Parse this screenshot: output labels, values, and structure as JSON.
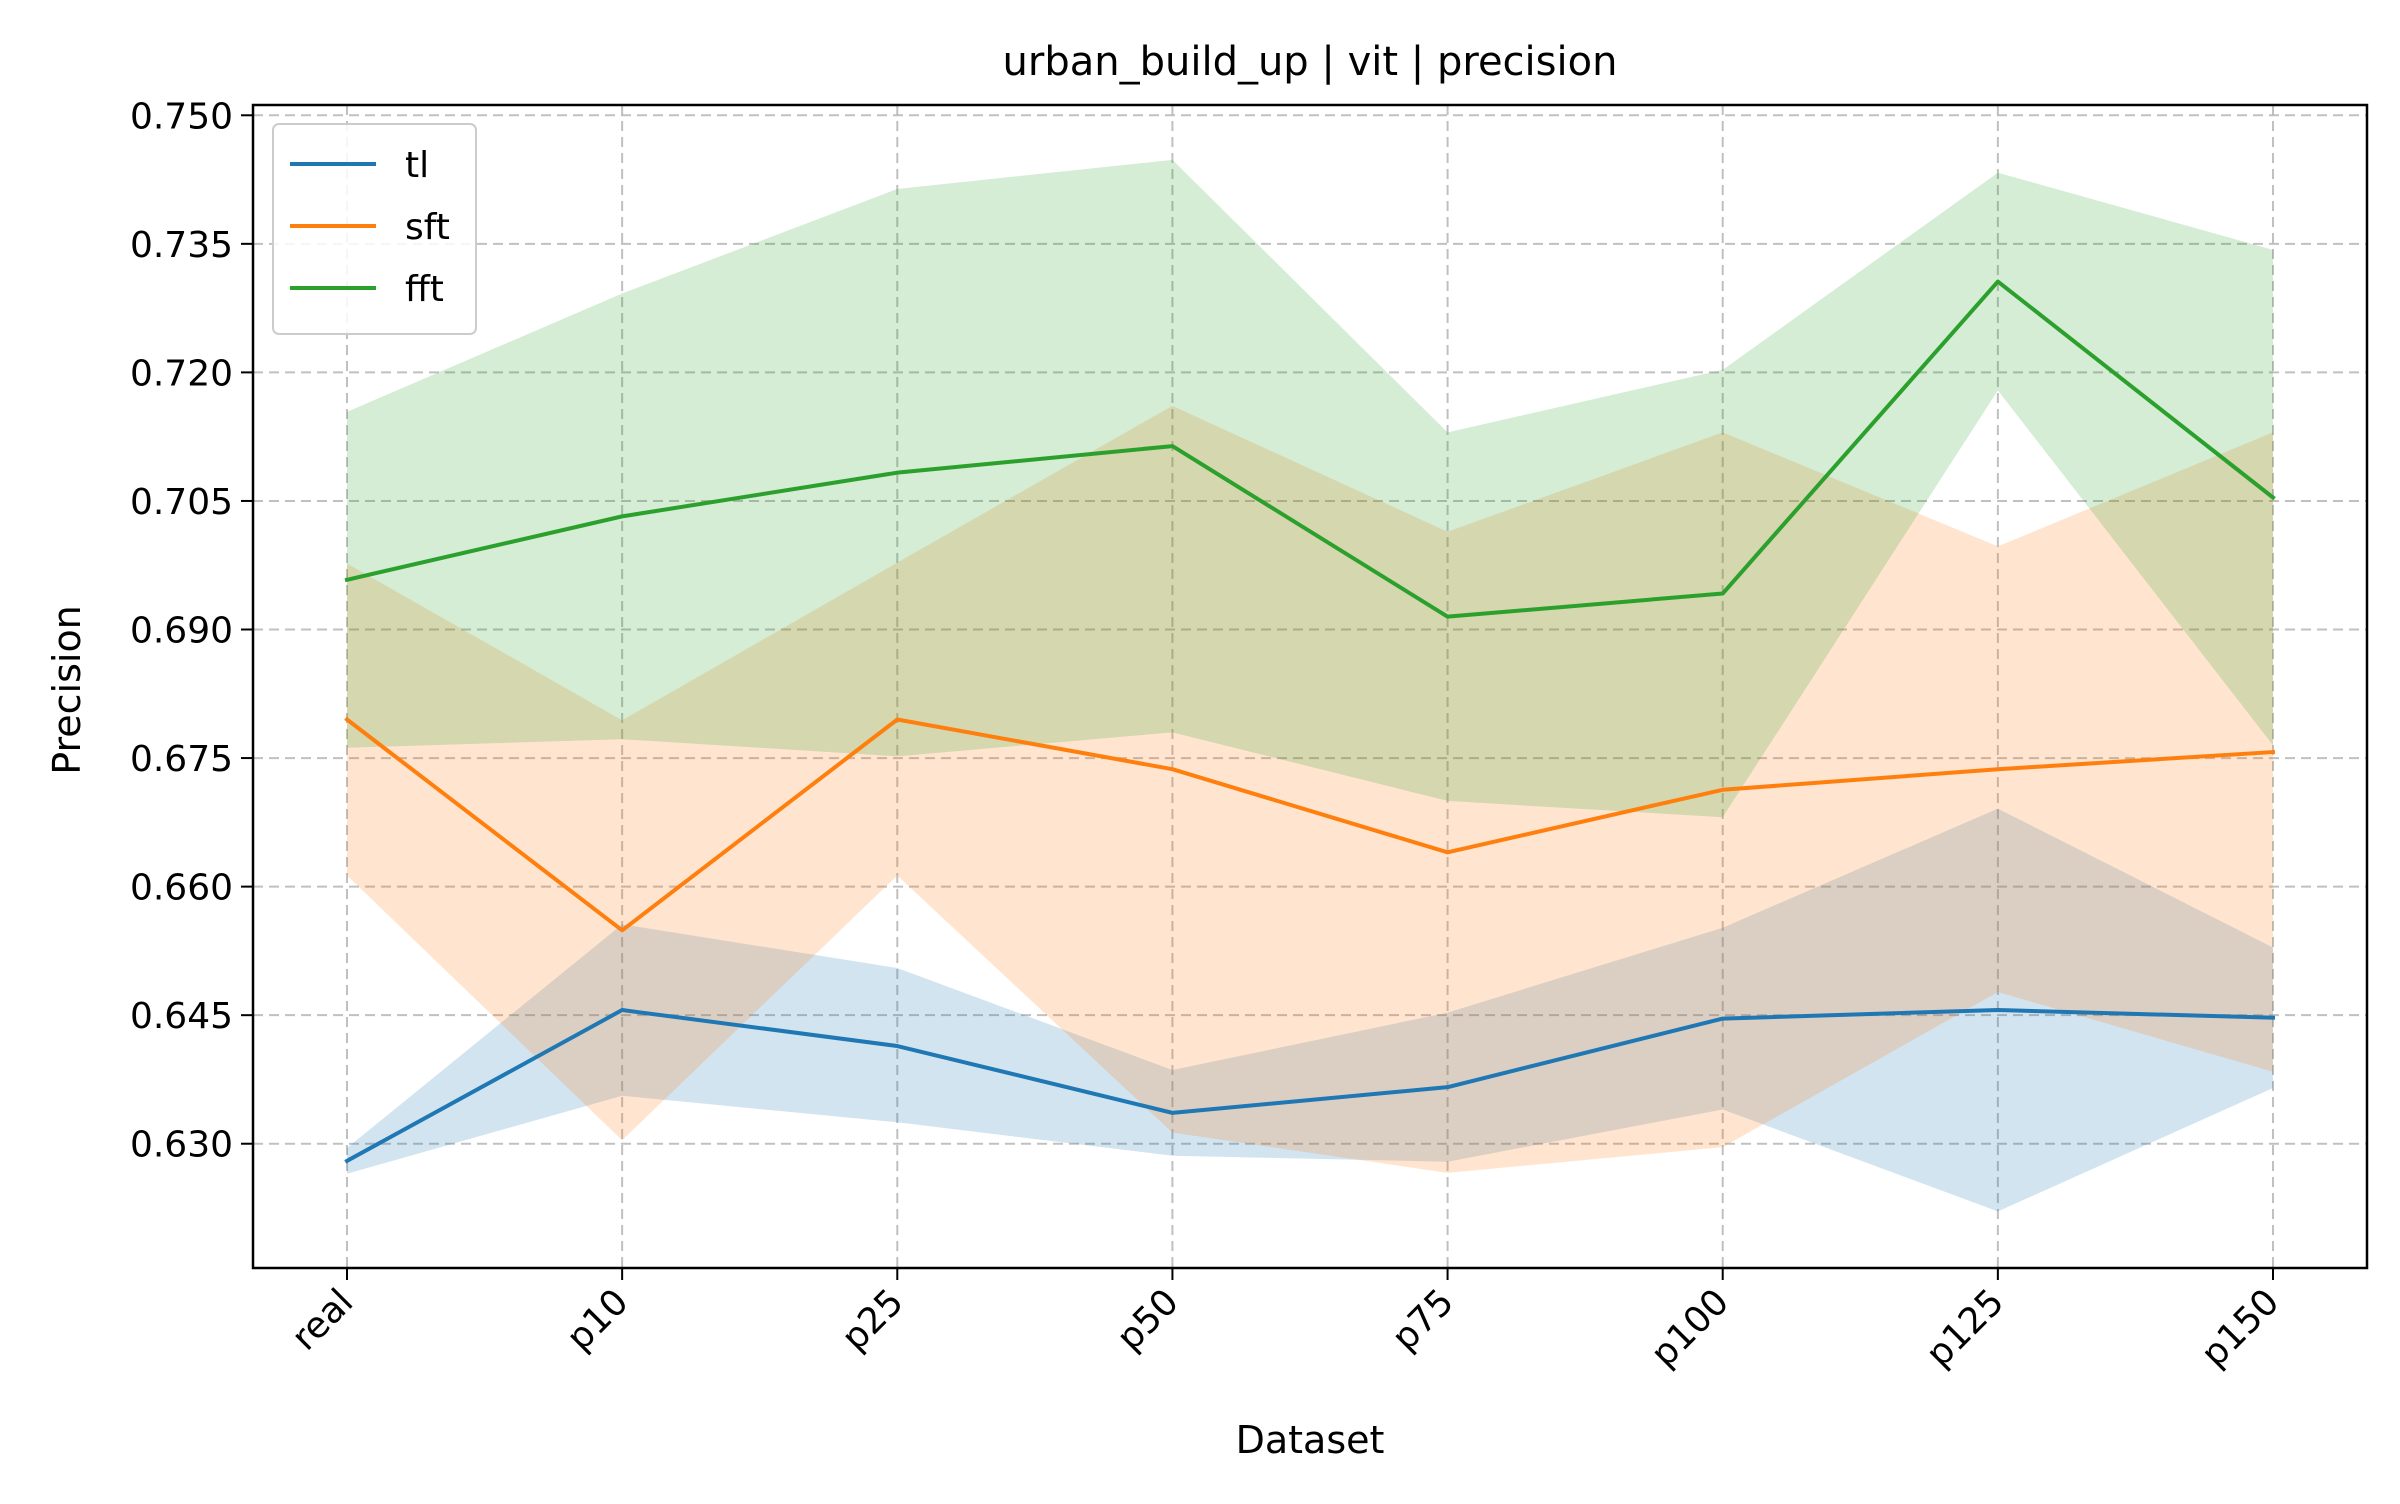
{
  "chart_data": {
    "type": "line",
    "title": "urban_build_up | vit | precision",
    "xlabel": "Dataset",
    "ylabel": "Precision",
    "categories": [
      "real",
      "p10",
      "p25",
      "p50",
      "p75",
      "p100",
      "p125",
      "p150"
    ],
    "ylim": [
      0.6155,
      0.7512
    ],
    "yticks": [
      0.63,
      0.645,
      0.66,
      0.675,
      0.69,
      0.705,
      0.72,
      0.735,
      0.75
    ],
    "ytick_labels": [
      "0.630",
      "0.645",
      "0.660",
      "0.675",
      "0.690",
      "0.705",
      "0.720",
      "0.735",
      "0.750"
    ],
    "grid": true,
    "legend_position": "top-left",
    "series": [
      {
        "name": "tl",
        "color": "#1f77b4",
        "values": [
          0.628,
          0.6456,
          0.6414,
          0.6336,
          0.6366,
          0.6446,
          0.6456,
          0.6447
        ],
        "upper": [
          0.6295,
          0.6556,
          0.6505,
          0.6386,
          0.6453,
          0.6552,
          0.6691,
          0.6529
        ],
        "lower": [
          0.6265,
          0.6356,
          0.6325,
          0.6286,
          0.6279,
          0.634,
          0.6221,
          0.6365
        ]
      },
      {
        "name": "sft",
        "color": "#ff7f0e",
        "values": [
          0.6795,
          0.6549,
          0.6795,
          0.6737,
          0.664,
          0.6713,
          0.6737,
          0.6757
        ],
        "upper": [
          0.6977,
          0.6794,
          0.6978,
          0.7161,
          0.7014,
          0.713,
          0.6997,
          0.713
        ],
        "lower": [
          0.6613,
          0.6304,
          0.6613,
          0.6313,
          0.6266,
          0.6296,
          0.6477,
          0.6384
        ]
      },
      {
        "name": "fft",
        "color": "#2ca02c",
        "values": [
          0.6958,
          0.7032,
          0.7083,
          0.7114,
          0.6915,
          0.6942,
          0.7306,
          0.7054
        ],
        "upper": [
          0.7154,
          0.7292,
          0.7414,
          0.7448,
          0.713,
          0.7203,
          0.7433,
          0.7343
        ],
        "lower": [
          0.6762,
          0.6772,
          0.6752,
          0.678,
          0.67,
          0.6681,
          0.7179,
          0.6765
        ]
      }
    ]
  }
}
